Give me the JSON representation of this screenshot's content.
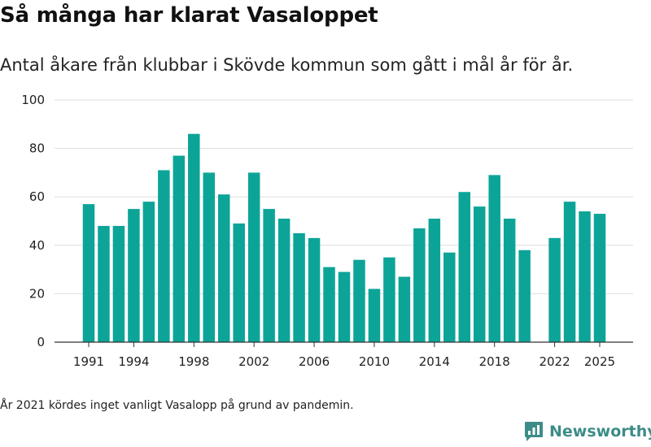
{
  "title": "Så många har klarat Vasaloppet",
  "subtitle": "Antal åkare från klubbar i Skövde kommun som gått i mål år för år.",
  "footnote": "År 2021 kördes inget vanligt Vasalopp på grund av pandemin.",
  "brand": {
    "name": "Newsworthy",
    "icon": "newsworthy-logo-icon"
  },
  "colors": {
    "bar": "#0da498",
    "grid": "#dddddd",
    "axis": "#333333",
    "brand": "#3c8c88"
  },
  "chart_data": {
    "type": "bar",
    "x": [
      1991,
      1992,
      1993,
      1994,
      1995,
      1996,
      1997,
      1998,
      1999,
      2000,
      2001,
      2002,
      2003,
      2004,
      2005,
      2006,
      2007,
      2008,
      2009,
      2010,
      2011,
      2012,
      2013,
      2014,
      2015,
      2016,
      2017,
      2018,
      2019,
      2020,
      2021,
      2022,
      2023,
      2024,
      2025
    ],
    "values": [
      57,
      48,
      48,
      55,
      58,
      71,
      77,
      86,
      70,
      61,
      49,
      70,
      55,
      51,
      45,
      43,
      31,
      29,
      34,
      22,
      35,
      27,
      47,
      51,
      37,
      62,
      56,
      69,
      51,
      38,
      null,
      43,
      58,
      54,
      53
    ],
    "x_ticks": [
      "1991",
      "1994",
      "1998",
      "2002",
      "2006",
      "2010",
      "2014",
      "2018",
      "2022",
      "2025"
    ],
    "y_ticks": [
      0,
      20,
      40,
      60,
      80,
      100
    ],
    "ylim": [
      0,
      100
    ],
    "xlabel": "",
    "ylabel": "",
    "grid": true
  }
}
